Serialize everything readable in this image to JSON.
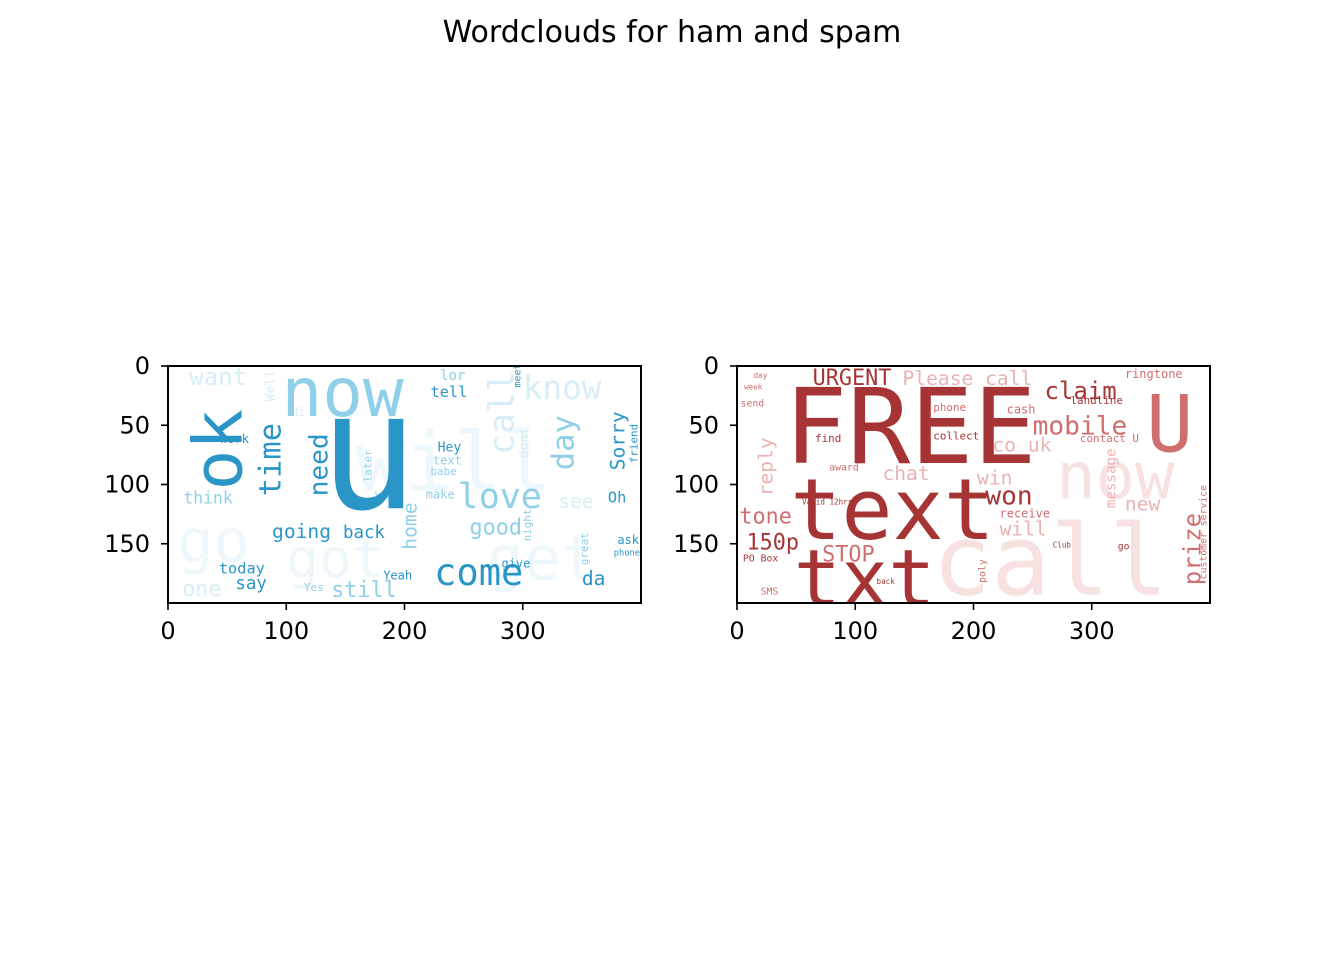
{
  "figure": {
    "title": "Wordclouds for ham and spam"
  },
  "chart_data": [
    {
      "type": "image",
      "name": "ham",
      "xlim": [
        0,
        400
      ],
      "ylim": [
        200,
        0
      ],
      "xticks": [
        "0",
        "100",
        "200",
        "300"
      ],
      "yticks": [
        "0",
        "50",
        "100",
        "150"
      ],
      "xtick_values": [
        0,
        100,
        200,
        300
      ],
      "ytick_values": [
        0,
        50,
        100,
        150
      ],
      "colors": {
        "strong": "#2a96c8",
        "mid": "#8fcfe8",
        "light": "#d7edf8",
        "faint": "#eef7fc"
      },
      "words": [
        {
          "t": "u",
          "x": 128,
          "y": 120,
          "s": 150,
          "c": "strong",
          "r": 0
        },
        {
          "t": "ok",
          "x": 62,
          "y": 105,
          "s": 62,
          "c": "strong",
          "r": -90
        },
        {
          "t": "now",
          "x": 96,
          "y": 42,
          "s": 62,
          "c": "mid",
          "r": 0
        },
        {
          "t": "will",
          "x": 158,
          "y": 105,
          "s": 75,
          "c": "faint",
          "r": 0
        },
        {
          "t": "go",
          "x": 8,
          "y": 165,
          "s": 55,
          "c": "faint",
          "r": 0
        },
        {
          "t": "got",
          "x": 100,
          "y": 178,
          "s": 50,
          "c": "faint",
          "r": 0
        },
        {
          "t": "get",
          "x": 270,
          "y": 180,
          "s": 56,
          "c": "faint",
          "r": 0
        },
        {
          "t": "know",
          "x": 300,
          "y": 28,
          "s": 30,
          "c": "light",
          "r": 0
        },
        {
          "t": "want",
          "x": 18,
          "y": 16,
          "s": 22,
          "c": "light",
          "r": 0
        },
        {
          "t": "time",
          "x": 95,
          "y": 110,
          "s": 28,
          "c": "strong",
          "r": -90
        },
        {
          "t": "need",
          "x": 135,
          "y": 110,
          "s": 24,
          "c": "strong",
          "r": -90
        },
        {
          "t": "love",
          "x": 245,
          "y": 120,
          "s": 32,
          "c": "mid",
          "r": 0
        },
        {
          "t": "come",
          "x": 225,
          "y": 185,
          "s": 34,
          "c": "strong",
          "r": 0
        },
        {
          "t": "day",
          "x": 343,
          "y": 88,
          "s": 28,
          "c": "mid",
          "r": -90
        },
        {
          "t": "call",
          "x": 292,
          "y": 75,
          "s": 32,
          "c": "light",
          "r": -90
        },
        {
          "t": "Sorry",
          "x": 386,
          "y": 88,
          "s": 18,
          "c": "strong",
          "r": -90
        },
        {
          "t": "friend",
          "x": 397,
          "y": 82,
          "s": 10,
          "c": "strong",
          "r": -90
        },
        {
          "t": "going",
          "x": 88,
          "y": 145,
          "s": 18,
          "c": "strong",
          "r": 0
        },
        {
          "t": "back",
          "x": 148,
          "y": 145,
          "s": 16,
          "c": "strong",
          "r": 0
        },
        {
          "t": "home",
          "x": 210,
          "y": 155,
          "s": 18,
          "c": "mid",
          "r": -90
        },
        {
          "t": "good",
          "x": 255,
          "y": 142,
          "s": 20,
          "c": "mid",
          "r": 0
        },
        {
          "t": "today",
          "x": 43,
          "y": 175,
          "s": 14,
          "c": "strong",
          "r": 0
        },
        {
          "t": "say",
          "x": 57,
          "y": 188,
          "s": 16,
          "c": "strong",
          "r": 0
        },
        {
          "t": "still",
          "x": 138,
          "y": 195,
          "s": 20,
          "c": "mid",
          "r": 0
        },
        {
          "t": "da",
          "x": 350,
          "y": 185,
          "s": 18,
          "c": "strong",
          "r": 0
        },
        {
          "t": "think",
          "x": 13,
          "y": 116,
          "s": 15,
          "c": "mid",
          "r": 0
        },
        {
          "t": "tell",
          "x": 222,
          "y": 26,
          "s": 14,
          "c": "strong",
          "r": 0
        },
        {
          "t": "lor",
          "x": 230,
          "y": 12,
          "s": 13,
          "c": "mid",
          "r": 0
        },
        {
          "t": "Hey",
          "x": 228,
          "y": 72,
          "s": 12,
          "c": "strong",
          "r": 0
        },
        {
          "t": "text",
          "x": 224,
          "y": 83,
          "s": 11,
          "c": "mid",
          "r": 0
        },
        {
          "t": "babe",
          "x": 222,
          "y": 92,
          "s": 10,
          "c": "mid",
          "r": 0
        },
        {
          "t": "make",
          "x": 218,
          "y": 112,
          "s": 11,
          "c": "mid",
          "r": 0
        },
        {
          "t": "wat",
          "x": 175,
          "y": 112,
          "s": 11,
          "c": "mid",
          "r": 0
        },
        {
          "t": "Oh",
          "x": 372,
          "y": 115,
          "s": 14,
          "c": "strong",
          "r": 0
        },
        {
          "t": "see",
          "x": 330,
          "y": 120,
          "s": 18,
          "c": "light",
          "r": 0
        },
        {
          "t": "give",
          "x": 282,
          "y": 170,
          "s": 11,
          "c": "strong",
          "r": 0
        },
        {
          "t": "Yeah",
          "x": 182,
          "y": 180,
          "s": 11,
          "c": "strong",
          "r": 0
        },
        {
          "t": "Yes",
          "x": 115,
          "y": 190,
          "s": 10,
          "c": "mid",
          "r": 0
        },
        {
          "t": "work",
          "x": 44,
          "y": 65,
          "s": 11,
          "c": "strong",
          "r": 0
        },
        {
          "t": "one",
          "x": 12,
          "y": 194,
          "s": 20,
          "c": "light",
          "r": 0
        },
        {
          "t": "ask",
          "x": 380,
          "y": 150,
          "s": 11,
          "c": "strong",
          "r": 0
        },
        {
          "t": "phone",
          "x": 377,
          "y": 160,
          "s": 8,
          "c": "strong",
          "r": 0
        },
        {
          "t": "meet",
          "x": 298,
          "y": 18,
          "s": 9,
          "c": "strong",
          "r": -90
        },
        {
          "t": "night",
          "x": 307,
          "y": 148,
          "s": 10,
          "c": "mid",
          "r": -90
        },
        {
          "t": "later",
          "x": 172,
          "y": 98,
          "s": 10,
          "c": "mid",
          "r": -90
        },
        {
          "t": "great",
          "x": 355,
          "y": 168,
          "s": 10,
          "c": "mid",
          "r": -90
        },
        {
          "t": "already",
          "x": 153,
          "y": 90,
          "s": 11,
          "c": "light",
          "r": -90
        },
        {
          "t": "dont",
          "x": 305,
          "y": 78,
          "s": 12,
          "c": "light",
          "r": -90
        },
        {
          "t": "Hi",
          "x": 104,
          "y": 42,
          "s": 11,
          "c": "light",
          "r": 0
        },
        {
          "t": "Well",
          "x": 90,
          "y": 30,
          "s": 12,
          "c": "light",
          "r": -90
        }
      ]
    },
    {
      "type": "image",
      "name": "spam",
      "xlim": [
        0,
        400
      ],
      "ylim": [
        200,
        0
      ],
      "xticks": [
        "0",
        "100",
        "200",
        "300"
      ],
      "yticks": [
        "0",
        "50",
        "100",
        "150"
      ],
      "xtick_values": [
        0,
        100,
        200,
        300
      ],
      "ytick_values": [
        0,
        50,
        100,
        150
      ],
      "colors": {
        "strong": "#a63434",
        "mid": "#cf6e6e",
        "light": "#e9b3b3",
        "faint": "#f8e1e1"
      },
      "words": [
        {
          "t": "FREE",
          "x": 40,
          "y": 82,
          "s": 96,
          "c": "strong",
          "r": 0
        },
        {
          "t": "text",
          "x": 45,
          "y": 146,
          "s": 78,
          "c": "strong",
          "r": 0
        },
        {
          "t": "txt",
          "x": 48,
          "y": 202,
          "s": 72,
          "c": "strong",
          "r": 0
        },
        {
          "t": "call",
          "x": 165,
          "y": 193,
          "s": 90,
          "c": "faint",
          "r": 0
        },
        {
          "t": "now",
          "x": 270,
          "y": 112,
          "s": 60,
          "c": "faint",
          "r": 0
        },
        {
          "t": "U",
          "x": 346,
          "y": 72,
          "s": 72,
          "c": "mid",
          "r": 0
        },
        {
          "t": "URGENT",
          "x": 64,
          "y": 16,
          "s": 20,
          "c": "strong",
          "r": 0
        },
        {
          "t": "Please call",
          "x": 140,
          "y": 16,
          "s": 18,
          "c": "light",
          "r": 0
        },
        {
          "t": "claim",
          "x": 260,
          "y": 28,
          "s": 22,
          "c": "strong",
          "r": 0
        },
        {
          "t": "mobile",
          "x": 250,
          "y": 58,
          "s": 24,
          "c": "mid",
          "r": 0
        },
        {
          "t": "won",
          "x": 210,
          "y": 117,
          "s": 24,
          "c": "strong",
          "r": 0
        },
        {
          "t": "tone",
          "x": 2,
          "y": 133,
          "s": 20,
          "c": "mid",
          "r": 0
        },
        {
          "t": "150p",
          "x": 8,
          "y": 155,
          "s": 20,
          "c": "strong",
          "r": 0
        },
        {
          "t": "STOP",
          "x": 72,
          "y": 165,
          "s": 20,
          "c": "mid",
          "r": 0
        },
        {
          "t": "prize",
          "x": 392,
          "y": 185,
          "s": 22,
          "c": "mid",
          "r": -90
        },
        {
          "t": "reply",
          "x": 30,
          "y": 110,
          "s": 18,
          "c": "light",
          "r": -90
        },
        {
          "t": "co uk",
          "x": 216,
          "y": 72,
          "s": 18,
          "c": "light",
          "r": 0
        },
        {
          "t": "cash",
          "x": 228,
          "y": 40,
          "s": 11,
          "c": "mid",
          "r": 0
        },
        {
          "t": "landline",
          "x": 282,
          "y": 32,
          "s": 10,
          "c": "strong",
          "r": 0
        },
        {
          "t": "ringtone",
          "x": 328,
          "y": 10,
          "s": 11,
          "c": "mid",
          "r": 0
        },
        {
          "t": "phone",
          "x": 166,
          "y": 38,
          "s": 10,
          "c": "mid",
          "r": 0
        },
        {
          "t": "collect",
          "x": 166,
          "y": 62,
          "s": 10,
          "c": "strong",
          "r": 0
        },
        {
          "t": "find",
          "x": 66,
          "y": 64,
          "s": 10,
          "c": "strong",
          "r": 0
        },
        {
          "t": "contact U",
          "x": 290,
          "y": 64,
          "s": 10,
          "c": "mid",
          "r": 0
        },
        {
          "t": "receive",
          "x": 222,
          "y": 128,
          "s": 11,
          "c": "mid",
          "r": 0
        },
        {
          "t": "new",
          "x": 328,
          "y": 122,
          "s": 18,
          "c": "light",
          "r": 0
        },
        {
          "t": "chat",
          "x": 123,
          "y": 96,
          "s": 18,
          "c": "light",
          "r": 0
        },
        {
          "t": "win",
          "x": 203,
          "y": 100,
          "s": 18,
          "c": "light",
          "r": 0
        },
        {
          "t": "will",
          "x": 222,
          "y": 143,
          "s": 18,
          "c": "light",
          "r": 0
        },
        {
          "t": "award",
          "x": 78,
          "y": 88,
          "s": 9,
          "c": "mid",
          "r": 0
        },
        {
          "t": "send",
          "x": 3,
          "y": 34,
          "s": 9,
          "c": "mid",
          "r": 0
        },
        {
          "t": "PO Box",
          "x": 5,
          "y": 165,
          "s": 9,
          "c": "strong",
          "r": 0
        },
        {
          "t": "SMS",
          "x": 20,
          "y": 193,
          "s": 9,
          "c": "mid",
          "r": 0
        },
        {
          "t": "go",
          "x": 322,
          "y": 155,
          "s": 9,
          "c": "strong",
          "r": 0
        },
        {
          "t": "Club",
          "x": 267,
          "y": 153,
          "s": 7,
          "c": "strong",
          "r": 0
        },
        {
          "t": "customer service",
          "x": 397,
          "y": 180,
          "s": 9,
          "c": "mid",
          "r": -90
        },
        {
          "t": "poly",
          "x": 210,
          "y": 183,
          "s": 9,
          "c": "mid",
          "r": -90
        },
        {
          "t": "message",
          "x": 320,
          "y": 120,
          "s": 13,
          "c": "light",
          "r": -90
        },
        {
          "t": "day",
          "x": 14,
          "y": 10,
          "s": 7,
          "c": "mid",
          "r": 0
        },
        {
          "t": "week",
          "x": 6,
          "y": 20,
          "s": 7,
          "c": "mid",
          "r": 0
        },
        {
          "t": "Valid 12hrs",
          "x": 55,
          "y": 117,
          "s": 7,
          "c": "strong",
          "r": 0
        },
        {
          "t": "back",
          "x": 118,
          "y": 184,
          "s": 7,
          "c": "strong",
          "r": 0
        }
      ]
    }
  ]
}
